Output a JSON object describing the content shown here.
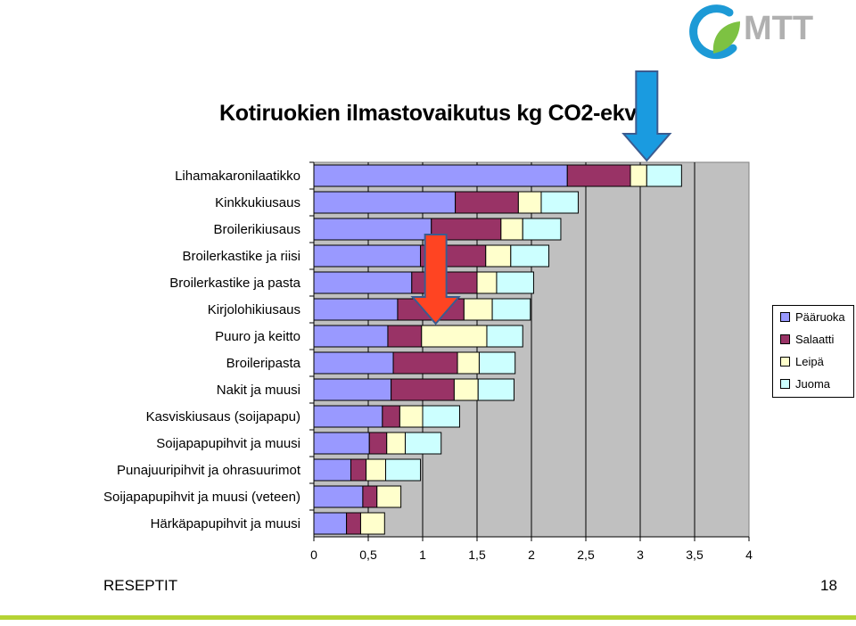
{
  "logo": {
    "text": "MTT"
  },
  "footer": {
    "left": "RESEPTIT",
    "page": "18"
  },
  "colors": {
    "plot_bg": "#c0c0c0",
    "arrow_blue": "#1a9be0",
    "arrow_red": "#ff4422",
    "logo_blue": "#1d9ad6",
    "logo_green": "#7dc242",
    "bottom_line": "#b5d334"
  },
  "chart_data": {
    "type": "bar",
    "orientation": "horizontal",
    "stacked": true,
    "title": "Kotiruokien ilmastovaikutus kg CO2-ekv",
    "categories": [
      "Lihamakaronilaatikko",
      "Kinkkukiusaus",
      "Broilerikiusaus",
      "Broilerkastike ja riisi",
      "Broilerkastike ja pasta",
      "Kirjolohikiusaus",
      "Puuro ja keitto",
      "Broileripasta",
      "Nakit ja muusi",
      "Kasviskiusaus (soijapapu)",
      "Soijapapupihvit ja muusi",
      "Punajuuripihvit ja ohrasuurimot",
      "Soijapapupihvit ja muusi (veteen)",
      "Härkäpapupihvit ja muusi"
    ],
    "series": [
      {
        "name": "Pääruoka",
        "color": "#9999ff",
        "values": [
          2.33,
          1.3,
          1.08,
          0.98,
          0.9,
          0.77,
          0.68,
          0.73,
          0.71,
          0.63,
          0.51,
          0.34,
          0.45,
          0.3
        ]
      },
      {
        "name": "Salaatti",
        "color": "#993366",
        "values": [
          0.58,
          0.58,
          0.64,
          0.6,
          0.6,
          0.61,
          0.31,
          0.59,
          0.58,
          0.16,
          0.16,
          0.14,
          0.13,
          0.13
        ]
      },
      {
        "name": "Leipä",
        "color": "#ffffcc",
        "values": [
          0.15,
          0.21,
          0.2,
          0.23,
          0.18,
          0.26,
          0.6,
          0.2,
          0.22,
          0.21,
          0.17,
          0.18,
          0.22,
          0.22
        ]
      },
      {
        "name": "Juoma",
        "color": "#ccffff",
        "values": [
          0.32,
          0.34,
          0.35,
          0.35,
          0.34,
          0.35,
          0.33,
          0.33,
          0.33,
          0.34,
          0.33,
          0.32,
          0.0,
          0.0
        ]
      }
    ],
    "x_ticks": [
      "0",
      "0,5",
      "1",
      "1,5",
      "2",
      "2,5",
      "3",
      "3,5",
      "4"
    ],
    "xlim": [
      0,
      4
    ],
    "grid": true,
    "legend_position": "right"
  }
}
